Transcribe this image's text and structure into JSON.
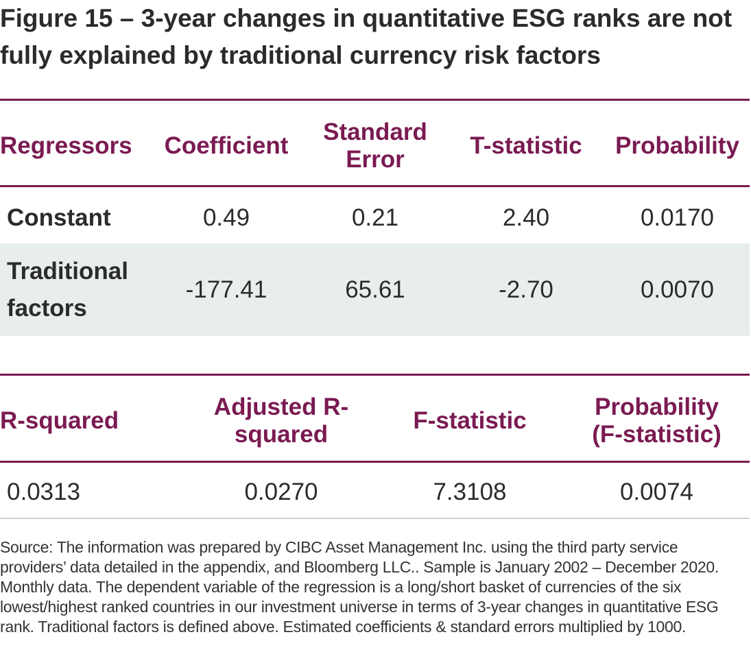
{
  "figure": {
    "title": "Figure 15 – 3-year changes in quantitative ESG ranks are not fully explained by traditional currency risk factors"
  },
  "table1": {
    "headers": [
      "Regressors",
      "Coefficient",
      "Standard Error",
      "T-statistic",
      "Probability"
    ],
    "rows": [
      {
        "regressor": "Constant",
        "coefficient": "0.49",
        "std_error": "0.21",
        "t_stat": "2.40",
        "probability": "0.0170"
      },
      {
        "regressor": "Traditional factors",
        "coefficient": "-177.41",
        "std_error": "65.61",
        "t_stat": "-2.70",
        "probability": "0.0070"
      }
    ]
  },
  "table2": {
    "headers": [
      "R-squared",
      "Adjusted R-squared",
      "F-statistic",
      "Probability (F-statistic)"
    ],
    "values": [
      "0.0313",
      "0.0270",
      "7.3108",
      "0.0074"
    ]
  },
  "source": "Source: The information was prepared by CIBC Asset Management Inc. using the third party service providers’ data detailed in the appendix, and Bloomberg LLC.. Sample is January 2002 – December 2020. Monthly data. The dependent variable of the regression is a long/short basket of currencies of the six lowest/highest ranked countries in our investment universe in terms of 3-year changes in quantitative ESG rank. Traditional factors is defined above. Estimated coefficients & standard errors multiplied by 1000.",
  "colors": {
    "accent": "#7a1a52",
    "band": "#e8eeeb",
    "divider": "#cfcfcf"
  }
}
